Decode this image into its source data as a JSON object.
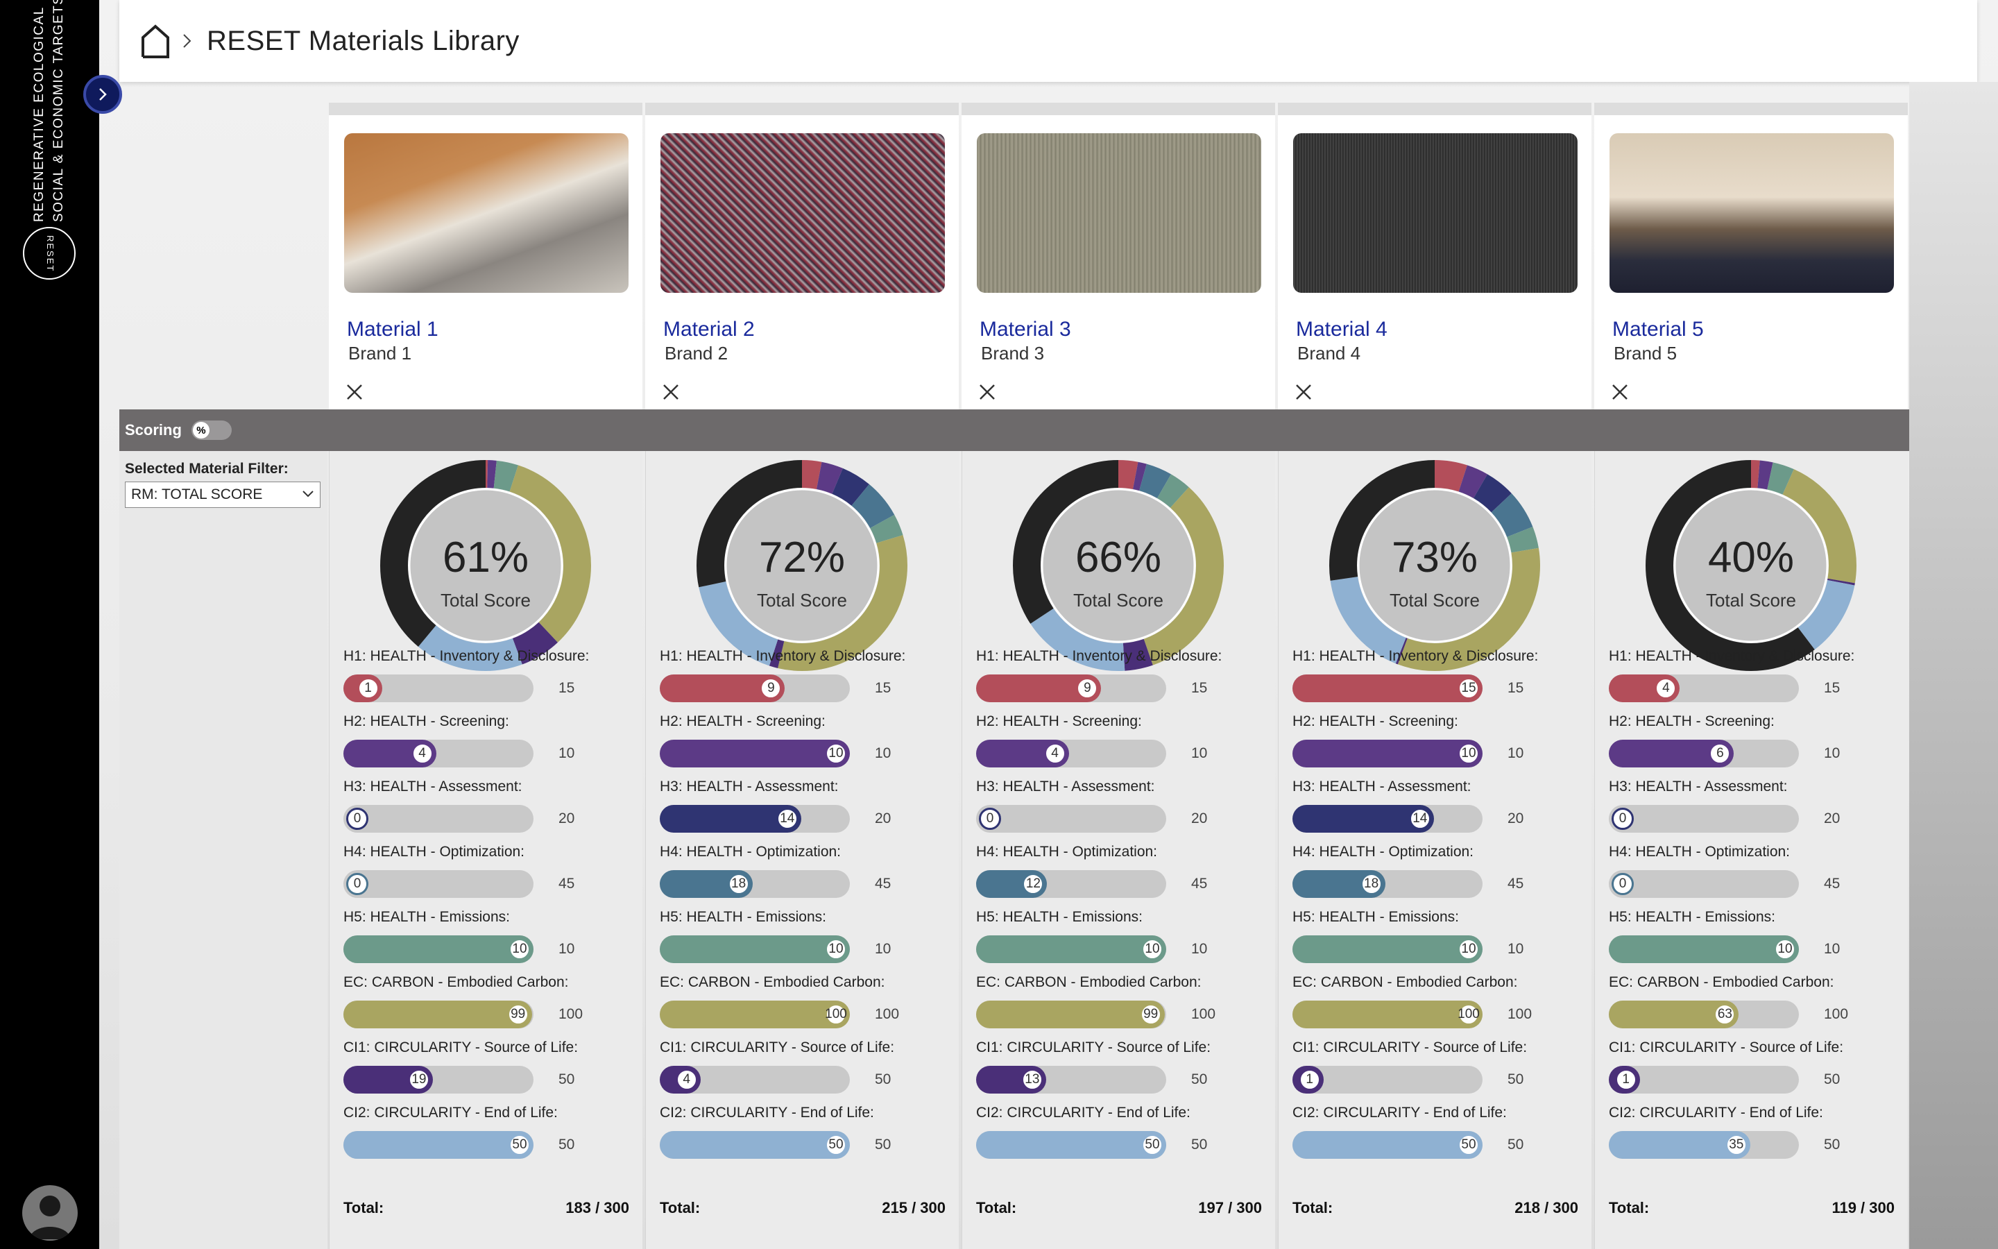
{
  "app": {
    "logo_line1": "REGENERATIVE  ECOLOGICAL",
    "logo_line2": "SOCIAL & ECONOMIC TARGETS",
    "logo_mark": "RESET"
  },
  "header": {
    "title": "RESET Materials Library"
  },
  "scoring": {
    "label": "Scoring",
    "toggle_symbol": "%"
  },
  "filter": {
    "label": "Selected Material Filter:",
    "selected": "RM: TOTAL SCORE"
  },
  "colors": {
    "h1": "#b34e5a",
    "h2": "#5c3a86",
    "h3": "#2f3472",
    "h4": "#4a7590",
    "h5": "#6c9a8a",
    "ec": "#a9a561",
    "ci1": "#4a2f78",
    "ci2": "#8fb1d2",
    "dark": "#232323",
    "link": "#1a2a9c"
  },
  "categories": [
    {
      "key": "h1",
      "label": "H1: HEALTH - Inventory & Disclosure:",
      "max": 15
    },
    {
      "key": "h2",
      "label": "H2: HEALTH - Screening:",
      "max": 10
    },
    {
      "key": "h3",
      "label": "H3: HEALTH - Assessment:",
      "max": 20
    },
    {
      "key": "h4",
      "label": "H4: HEALTH - Optimization:",
      "max": 45
    },
    {
      "key": "h5",
      "label": "H5: HEALTH - Emissions:",
      "max": 10
    },
    {
      "key": "ec",
      "label": "EC: CARBON - Embodied Carbon:",
      "max": 100
    },
    {
      "key": "ci1",
      "label": "CI1: CIRCULARITY - Source of Life:",
      "max": 50
    },
    {
      "key": "ci2",
      "label": "CI2: CIRCULARITY - End of Life:",
      "max": 50
    }
  ],
  "total_label": "Total:",
  "total_score_label": "Total Score",
  "materials": [
    {
      "name": "Material 1",
      "brand": "Brand 1",
      "percent": "61%",
      "total": "183 / 300",
      "scores": [
        1,
        4,
        0,
        0,
        10,
        99,
        19,
        50
      ]
    },
    {
      "name": "Material 2",
      "brand": "Brand 2",
      "percent": "72%",
      "total": "215 / 300",
      "scores": [
        9,
        10,
        14,
        18,
        10,
        100,
        4,
        50
      ]
    },
    {
      "name": "Material 3",
      "brand": "Brand 3",
      "percent": "66%",
      "total": "197 / 300",
      "scores": [
        9,
        4,
        0,
        12,
        10,
        99,
        13,
        50
      ]
    },
    {
      "name": "Material 4",
      "brand": "Brand 4",
      "percent": "73%",
      "total": "218  / 300",
      "scores": [
        15,
        10,
        14,
        18,
        10,
        100,
        1,
        50
      ]
    },
    {
      "name": "Material 5",
      "brand": "Brand 5",
      "percent": "40%",
      "total": "119 / 300",
      "scores": [
        4,
        6,
        0,
        0,
        10,
        63,
        1,
        35
      ]
    }
  ]
}
